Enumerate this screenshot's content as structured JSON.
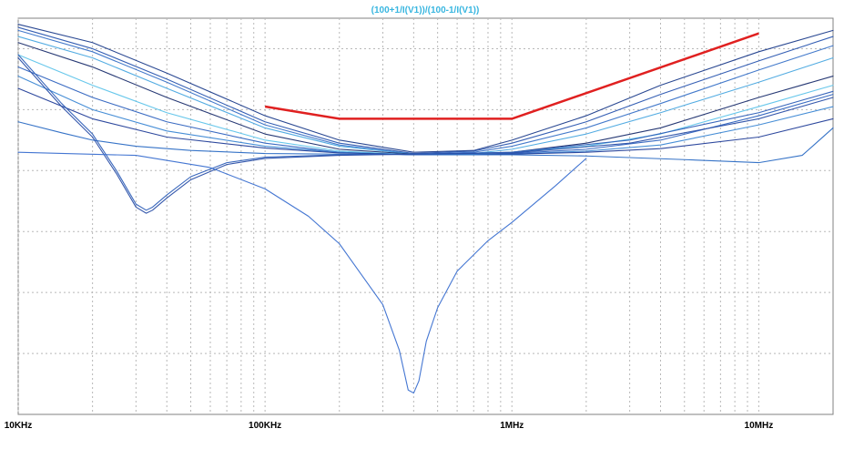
{
  "chart_data": {
    "type": "line",
    "title": "(100+1/I(V1))/(100-1/I(V1))",
    "x_scale": "log",
    "xlim": [
      10000,
      20000000
    ],
    "ylim": [
      0,
      6.5
    ],
    "grid": true,
    "x_tick_labels": [
      {
        "value": 10000,
        "label": "10KHz"
      },
      {
        "value": 100000,
        "label": "100KHz"
      },
      {
        "value": 1000000,
        "label": "1MHz"
      },
      {
        "value": 10000000,
        "label": "10MHz"
      }
    ],
    "x_major_ticks": [
      10000,
      100000,
      1000000,
      10000000
    ],
    "x_minor_ticks": [
      20000,
      30000,
      40000,
      50000,
      60000,
      70000,
      80000,
      90000,
      200000,
      300000,
      400000,
      500000,
      600000,
      700000,
      800000,
      900000,
      2000000,
      3000000,
      4000000,
      5000000,
      6000000,
      7000000,
      8000000,
      9000000
    ],
    "y_gridlines": [
      1,
      2,
      3,
      4,
      5,
      6
    ],
    "series": [
      {
        "color": "#1f3e8c",
        "x": [
          10000,
          20000,
          40000,
          100000,
          200000,
          400000,
          700000,
          1000000,
          2000000,
          4000000,
          10000000,
          20000000
        ],
        "y": [
          6.4,
          6.1,
          5.6,
          4.9,
          4.5,
          4.3,
          4.33,
          4.5,
          4.9,
          5.4,
          5.95,
          6.3
        ]
      },
      {
        "color": "#2a56b0",
        "x": [
          10000,
          20000,
          40000,
          100000,
          200000,
          400000,
          700000,
          1000000,
          2000000,
          4000000,
          10000000,
          20000000
        ],
        "y": [
          6.35,
          6.0,
          5.5,
          4.8,
          4.45,
          4.28,
          4.32,
          4.45,
          4.8,
          5.25,
          5.8,
          6.2
        ]
      },
      {
        "color": "#3a73c8",
        "x": [
          10000,
          20000,
          40000,
          100000,
          200000,
          400000,
          700000,
          1000000,
          2000000,
          4000000,
          10000000,
          20000000
        ],
        "y": [
          6.3,
          5.95,
          5.45,
          4.75,
          4.42,
          4.27,
          4.3,
          4.4,
          4.7,
          5.1,
          5.65,
          6.05
        ]
      },
      {
        "color": "#4aa8e0",
        "x": [
          10000,
          20000,
          40000,
          100000,
          200000,
          400000,
          700000,
          1000000,
          2000000,
          4000000,
          10000000,
          20000000
        ],
        "y": [
          6.2,
          5.85,
          5.35,
          4.7,
          4.4,
          4.27,
          4.28,
          4.35,
          4.6,
          4.95,
          5.45,
          5.85
        ]
      },
      {
        "color": "#1c2f6e",
        "x": [
          10000,
          20000,
          40000,
          100000,
          200000,
          400000,
          700000,
          1000000,
          2000000,
          4000000,
          10000000,
          20000000
        ],
        "y": [
          6.1,
          5.7,
          5.2,
          4.6,
          4.35,
          4.27,
          4.28,
          4.3,
          4.45,
          4.7,
          5.2,
          5.55
        ]
      },
      {
        "color": "#5fc4ea",
        "x": [
          10000,
          20000,
          40000,
          100000,
          200000,
          400000,
          700000,
          1000000,
          2000000,
          4000000,
          10000000,
          20000000
        ],
        "y": [
          5.9,
          5.4,
          4.95,
          4.5,
          4.32,
          4.26,
          4.27,
          4.3,
          4.4,
          4.6,
          5.05,
          5.4
        ]
      },
      {
        "color": "#2f63bf",
        "x": [
          10000,
          20000,
          40000,
          100000,
          200000,
          400000,
          700000,
          1000000,
          2000000,
          4000000,
          10000000,
          20000000
        ],
        "y": [
          5.7,
          5.2,
          4.8,
          4.45,
          4.3,
          4.26,
          4.26,
          4.28,
          4.35,
          4.5,
          4.9,
          5.25
        ]
      },
      {
        "color": "#3d88d4",
        "x": [
          10000,
          20000,
          40000,
          100000,
          200000,
          400000,
          700000,
          1000000,
          2000000,
          4000000,
          10000000,
          20000000
        ],
        "y": [
          5.55,
          5.0,
          4.65,
          4.4,
          4.3,
          4.26,
          4.26,
          4.27,
          4.32,
          4.42,
          4.75,
          5.05
        ]
      },
      {
        "color": "#233f99",
        "x": [
          10000,
          20000,
          40000,
          100000,
          200000,
          400000,
          700000,
          1000000,
          2000000,
          4000000,
          10000000,
          20000000
        ],
        "y": [
          5.35,
          4.85,
          4.55,
          4.37,
          4.29,
          4.26,
          4.26,
          4.27,
          4.3,
          4.36,
          4.55,
          4.85
        ]
      },
      {
        "color": "#2b6cc4",
        "x": [
          10000,
          15000,
          20000,
          30000,
          50000,
          100000,
          200000,
          500000,
          1000000,
          2000000,
          5000000,
          10000000,
          15000000,
          20000000
        ],
        "y": [
          4.8,
          4.62,
          4.5,
          4.4,
          4.33,
          4.28,
          4.27,
          4.26,
          4.26,
          4.24,
          4.18,
          4.13,
          4.25,
          4.7
        ]
      },
      {
        "color": "#2e5fb8",
        "x": [
          10000,
          15000,
          20000,
          25000,
          30000,
          33000,
          35000,
          40000,
          50000,
          70000,
          100000,
          200000,
          400000,
          1000000,
          3000000,
          10000000,
          20000000
        ],
        "y": [
          5.9,
          5.1,
          4.6,
          4.0,
          3.45,
          3.35,
          3.4,
          3.6,
          3.9,
          4.13,
          4.22,
          4.26,
          4.27,
          4.3,
          4.5,
          4.95,
          5.3
        ]
      },
      {
        "color": "#2a4fa8",
        "x": [
          10000,
          15000,
          20000,
          25000,
          30000,
          33000,
          35000,
          40000,
          50000,
          70000,
          100000,
          200000,
          400000,
          1000000,
          3000000,
          10000000,
          20000000
        ],
        "y": [
          5.85,
          5.05,
          4.55,
          3.95,
          3.4,
          3.3,
          3.35,
          3.55,
          3.85,
          4.1,
          4.2,
          4.25,
          4.27,
          4.29,
          4.45,
          4.85,
          5.2
        ]
      },
      {
        "color": "#3a6fd0",
        "x": [
          10000,
          30000,
          60000,
          100000,
          150000,
          200000,
          300000,
          350000,
          380000,
          400000,
          420000,
          450000,
          500000,
          600000,
          800000,
          1000000,
          1500000,
          2000000
        ],
        "y": [
          4.3,
          4.25,
          4.05,
          3.7,
          3.25,
          2.8,
          1.8,
          1.05,
          0.4,
          0.35,
          0.55,
          1.2,
          1.75,
          2.35,
          2.85,
          3.15,
          3.75,
          4.2
        ]
      }
    ],
    "annotations": [
      {
        "type": "spec-line",
        "color": "#e02020",
        "x": [
          100000,
          200000,
          1000000,
          10000000
        ],
        "y": [
          5.05,
          4.85,
          4.85,
          6.25
        ]
      }
    ]
  }
}
